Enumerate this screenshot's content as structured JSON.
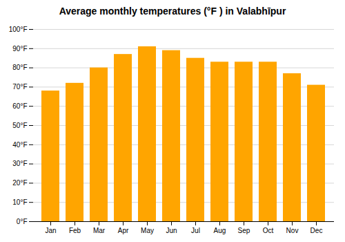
{
  "chart_data": {
    "type": "bar",
    "title": "Average monthly temperatures (°F ) in Valabhīpur",
    "categories": [
      "Jan",
      "Feb",
      "Mar",
      "Apr",
      "May",
      "Jun",
      "Jul",
      "Aug",
      "Sep",
      "Oct",
      "Nov",
      "Dec"
    ],
    "values": [
      68,
      72,
      80,
      87,
      91,
      89,
      85,
      83,
      83,
      83,
      77,
      71
    ],
    "color": "#FFA500",
    "ylim": [
      0,
      100
    ],
    "yticks": [
      {
        "value": 0,
        "label": "0°F"
      },
      {
        "value": 10,
        "label": "10°F"
      },
      {
        "value": 20,
        "label": "20°F"
      },
      {
        "value": 30,
        "label": "30°F"
      },
      {
        "value": 40,
        "label": "40°F"
      },
      {
        "value": 50,
        "label": "50°F"
      },
      {
        "value": 60,
        "label": "60°F"
      },
      {
        "value": 70,
        "label": "70°F"
      },
      {
        "value": 80,
        "label": "80°F"
      },
      {
        "value": 90,
        "label": "90°F"
      },
      {
        "value": 100,
        "label": "100°F"
      }
    ],
    "grid": true
  }
}
